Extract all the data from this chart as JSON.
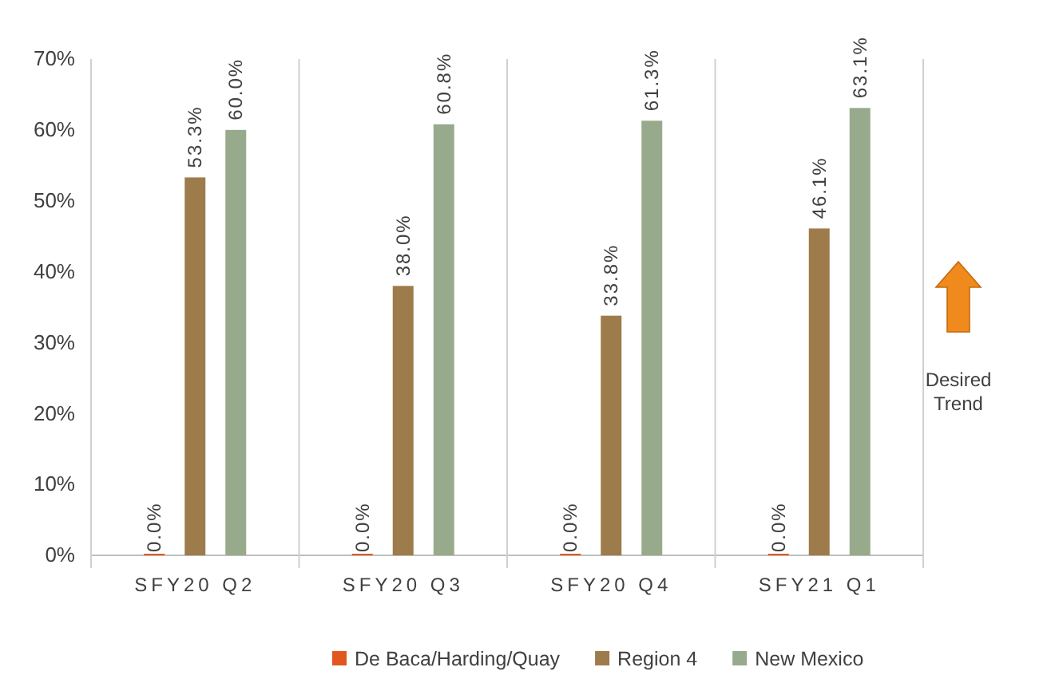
{
  "chart_data": {
    "type": "bar",
    "categories": [
      "SFY20 Q2",
      "SFY20 Q3",
      "SFY20 Q4",
      "SFY21 Q1"
    ],
    "series": [
      {
        "name": "De Baca/Harding/Quay",
        "color": "#e2561f",
        "values": [
          0,
          0,
          0,
          0
        ],
        "value_labels": [
          "0.0%",
          "0.0%",
          "0.0%",
          "0.0%"
        ]
      },
      {
        "name": "Region 4",
        "color": "#9e7b4b",
        "values": [
          53.3,
          38.0,
          33.8,
          46.1
        ],
        "value_labels": [
          "53.3%",
          "38.0%",
          "33.8%",
          "46.1%"
        ]
      },
      {
        "name": "New Mexico",
        "color": "#98aa8c",
        "values": [
          60.0,
          60.8,
          61.3,
          63.1
        ],
        "value_labels": [
          "60.0%",
          "60.8%",
          "61.3%",
          "63.1%"
        ]
      }
    ],
    "ylim": [
      0,
      70
    ],
    "yticks": [
      {
        "value": 0,
        "label": "0%"
      },
      {
        "value": 10,
        "label": "10%"
      },
      {
        "value": 20,
        "label": "20%"
      },
      {
        "value": 30,
        "label": "30%"
      },
      {
        "value": 40,
        "label": "40%"
      },
      {
        "value": 50,
        "label": "50%"
      },
      {
        "value": 60,
        "label": "60%"
      },
      {
        "value": 70,
        "label": "70%"
      }
    ],
    "legend": "bottom",
    "annotations": [
      "Desired Trend"
    ]
  }
}
